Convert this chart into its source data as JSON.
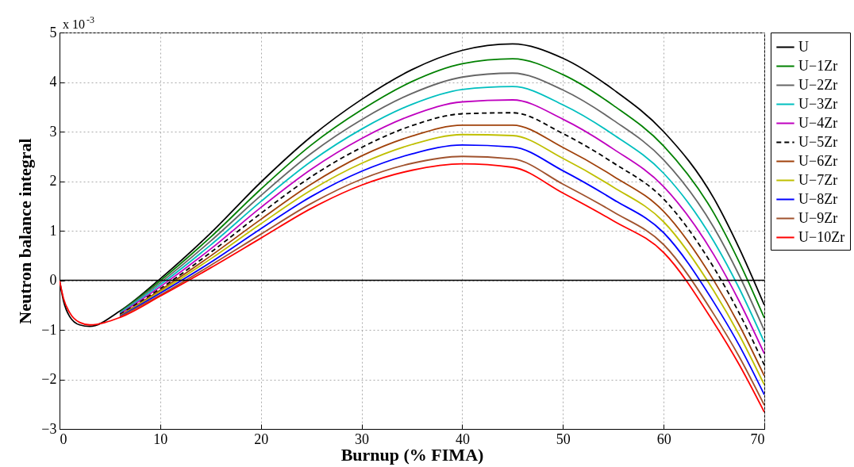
{
  "chart_data": {
    "type": "line",
    "xlabel": "Burnup (% FIMA)",
    "ylabel": "Neutron balance integral",
    "annotations": [
      "x 10$^{-3}$"
    ],
    "x": [
      0,
      0.4,
      1,
      2,
      3,
      6,
      10,
      15,
      20,
      25,
      30,
      35,
      40,
      45,
      50,
      55,
      60,
      65,
      67.5,
      70
    ],
    "xlim": [
      0,
      70
    ],
    "xticks": [
      0,
      10,
      20,
      30,
      40,
      50,
      60,
      70
    ],
    "ylim": [
      -3,
      5
    ],
    "yticks": [
      -3,
      -2,
      -1,
      0,
      1,
      2,
      3,
      4,
      5
    ],
    "grid": true,
    "legend": "top right",
    "marker": "none",
    "ref_lines": [
      {
        "axis": "y",
        "value": 0,
        "color": "#000000"
      }
    ],
    "series": [
      {
        "name": "U",
        "color": "#000000",
        "values": [
          0,
          -0.42,
          -0.73,
          -0.9,
          -0.93,
          -0.62,
          0.03,
          0.95,
          1.98,
          2.9,
          3.65,
          4.25,
          4.64,
          4.77,
          4.48,
          3.85,
          3.0,
          1.65,
          0.65,
          -0.5
        ]
      },
      {
        "name": "U−1Zr",
        "color": "#008000",
        "x": [
          6,
          10,
          15,
          20,
          25,
          30,
          35,
          40,
          45,
          50,
          55,
          60,
          65,
          67.5,
          70
        ],
        "values": [
          -0.64,
          -0.01,
          0.87,
          1.84,
          2.73,
          3.44,
          4.01,
          4.37,
          4.47,
          4.15,
          3.53,
          2.71,
          1.35,
          0.37,
          -0.76
        ]
      },
      {
        "name": "U−2Zr",
        "color": "#666666",
        "x": [
          6,
          10,
          15,
          20,
          25,
          30,
          35,
          40,
          45,
          50,
          55,
          60,
          65,
          67.5,
          70
        ],
        "values": [
          -0.65,
          -0.05,
          0.79,
          1.71,
          2.56,
          3.24,
          3.77,
          4.1,
          4.18,
          3.84,
          3.23,
          2.43,
          1.06,
          0.1,
          -1.01
        ]
      },
      {
        "name": "U−3Zr",
        "color": "#00bfbf",
        "x": [
          6,
          10,
          15,
          20,
          25,
          30,
          35,
          40,
          45,
          50,
          55,
          60,
          65,
          67.5,
          70
        ],
        "values": [
          -0.66,
          -0.09,
          0.71,
          1.59,
          2.4,
          3.05,
          3.55,
          3.85,
          3.91,
          3.54,
          2.94,
          2.16,
          0.78,
          -0.16,
          -1.25
        ]
      },
      {
        "name": "U−4Zr",
        "color": "#bf00bf",
        "x": [
          6,
          10,
          15,
          20,
          25,
          30,
          35,
          40,
          45,
          50,
          55,
          60,
          65,
          67.5,
          70
        ],
        "values": [
          -0.68,
          -0.13,
          0.63,
          1.47,
          2.24,
          2.86,
          3.33,
          3.6,
          3.64,
          3.25,
          2.65,
          1.89,
          0.51,
          -0.42,
          -1.48
        ]
      },
      {
        "name": "U−5Zr",
        "color": "#000000",
        "line_style": "dashed",
        "x": [
          6,
          10,
          15,
          20,
          25,
          30,
          35,
          40,
          45,
          50,
          55,
          60,
          65,
          67.5,
          70
        ],
        "values": [
          -0.69,
          -0.17,
          0.56,
          1.35,
          2.09,
          2.68,
          3.12,
          3.36,
          3.38,
          2.96,
          2.37,
          1.64,
          0.25,
          -0.66,
          -1.71
        ]
      },
      {
        "name": "U−6Zr",
        "color": "#a0410a",
        "x": [
          6,
          10,
          15,
          20,
          25,
          30,
          35,
          40,
          45,
          50,
          55,
          60,
          65,
          67.5,
          70
        ],
        "values": [
          -0.71,
          -0.2,
          0.49,
          1.23,
          1.94,
          2.51,
          2.91,
          3.13,
          3.13,
          2.68,
          2.1,
          1.39,
          -0.01,
          -0.9,
          -1.93
        ]
      },
      {
        "name": "U−7Zr",
        "color": "#bfbf00",
        "x": [
          6,
          10,
          15,
          20,
          25,
          30,
          35,
          40,
          45,
          50,
          55,
          60,
          65,
          67.5,
          70
        ],
        "values": [
          -0.72,
          -0.23,
          0.43,
          1.14,
          1.82,
          2.36,
          2.74,
          2.94,
          2.92,
          2.46,
          1.88,
          1.18,
          -0.22,
          -1.1,
          -2.11
        ]
      },
      {
        "name": "U−8Zr",
        "color": "#0000ff",
        "x": [
          6,
          10,
          15,
          20,
          25,
          30,
          35,
          40,
          45,
          50,
          55,
          60,
          65,
          67.5,
          70
        ],
        "values": [
          -0.73,
          -0.26,
          0.36,
          1.04,
          1.69,
          2.2,
          2.55,
          2.73,
          2.69,
          2.21,
          1.63,
          0.96,
          -0.45,
          -1.31,
          -2.31
        ]
      },
      {
        "name": "U−9Zr",
        "color": "#a0522d",
        "x": [
          6,
          10,
          15,
          20,
          25,
          30,
          35,
          40,
          45,
          50,
          55,
          60,
          65,
          67.5,
          70
        ],
        "values": [
          -0.74,
          -0.3,
          0.3,
          0.93,
          1.55,
          2.04,
          2.36,
          2.5,
          2.45,
          1.94,
          1.38,
          0.72,
          -0.69,
          -1.54,
          -2.52
        ]
      },
      {
        "name": "U−10Zr",
        "color": "#ff0000",
        "values": [
          0,
          -0.37,
          -0.65,
          -0.85,
          -0.9,
          -0.75,
          -0.32,
          0.25,
          0.85,
          1.45,
          1.92,
          2.22,
          2.35,
          2.28,
          1.76,
          1.2,
          0.56,
          -0.86,
          -1.7,
          -2.66
        ]
      }
    ]
  }
}
